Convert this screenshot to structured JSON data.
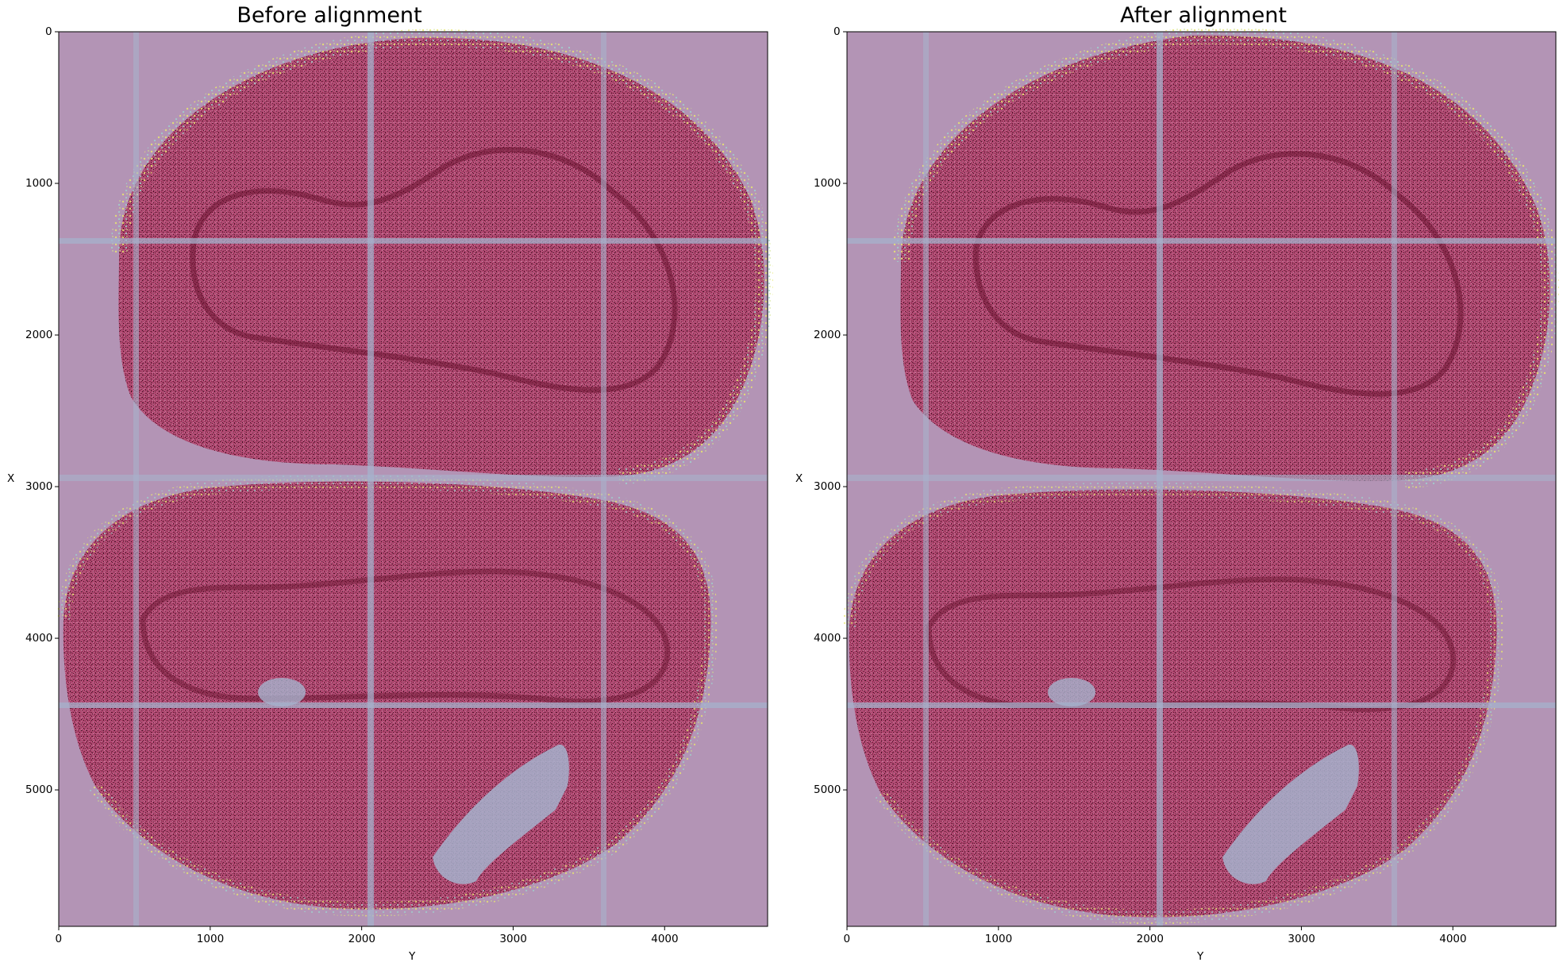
{
  "panels": [
    {
      "title": "Before alignment",
      "xlabel": "Y",
      "ylabel": "X",
      "x_ticks": [
        "0",
        "1000",
        "2000",
        "3000",
        "4000"
      ],
      "y_ticks": [
        "0",
        "1000",
        "2000",
        "3000",
        "4000",
        "5000"
      ]
    },
    {
      "title": "After alignment",
      "xlabel": "Y",
      "ylabel": "X",
      "x_ticks": [
        "0",
        "1000",
        "2000",
        "3000",
        "4000"
      ],
      "y_ticks": [
        "0",
        "1000",
        "2000",
        "3000",
        "4000",
        "5000"
      ]
    }
  ],
  "x_tick_values": [
    0,
    1000,
    2000,
    3000,
    4000
  ],
  "y_tick_values": [
    0,
    1000,
    2000,
    3000,
    4000,
    5000
  ],
  "x_range": [
    0,
    4680
  ],
  "y_range": [
    0,
    5900
  ],
  "colors": {
    "background_overlay": "#b394b5",
    "tissue": "#b5486e",
    "tissue_dark": "#7a1636",
    "grid_seams": "#a6b2cc",
    "highlight_yellow": "#e8e870",
    "highlight_cyan": "#9ed6cf"
  }
}
